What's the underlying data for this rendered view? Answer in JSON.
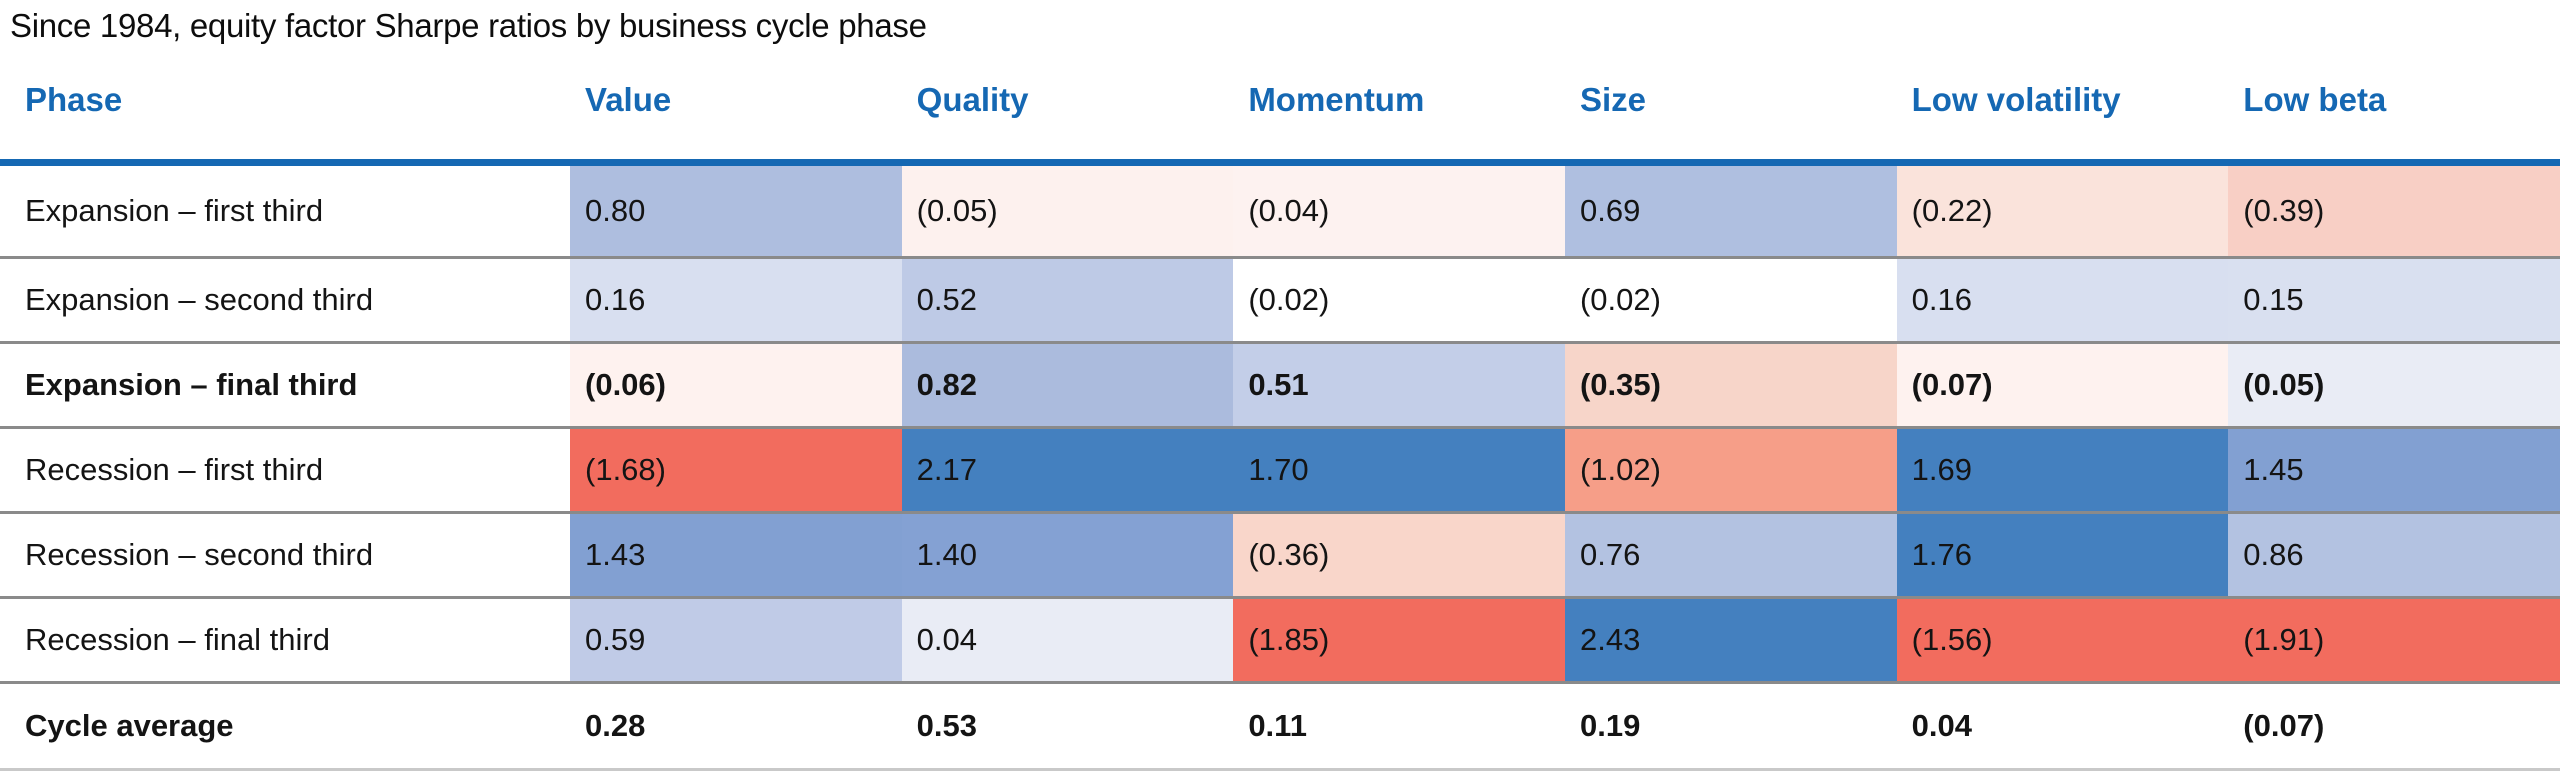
{
  "title": "Since 1984, equity factor Sharpe ratios by business cycle phase",
  "colors": {
    "accent": "#1568B3",
    "row_divider": "#8A8A8A",
    "bottom_border": "#C9C9C9",
    "text": "#141414",
    "strong_blue": "#4480BF",
    "strong_red": "#F26C5E"
  },
  "table": {
    "columns": [
      {
        "key": "phase",
        "label": "Phase"
      },
      {
        "key": "value",
        "label": "Value"
      },
      {
        "key": "quality",
        "label": "Quality"
      },
      {
        "key": "momentum",
        "label": "Momentum"
      },
      {
        "key": "size",
        "label": "Size"
      },
      {
        "key": "low-volatility",
        "label": "Low volatility"
      },
      {
        "key": "low-beta",
        "label": "Low beta"
      }
    ],
    "rows": [
      {
        "phase": "Expansion – first third",
        "bold": false,
        "cls": "row-first",
        "cells": [
          {
            "text": "0.80",
            "bg": "#AEBEDF"
          },
          {
            "text": "(0.05)",
            "bg": "#FDF1EE"
          },
          {
            "text": "(0.04)",
            "bg": "#FDF2F0"
          },
          {
            "text": "0.69",
            "bg": "#AFBFE0"
          },
          {
            "text": "(0.22)",
            "bg": "#FAE3DB"
          },
          {
            "text": "(0.39)",
            "bg": "#F8CFC5"
          }
        ]
      },
      {
        "phase": "Expansion – second third",
        "bold": false,
        "cls": "",
        "cells": [
          {
            "text": "0.16",
            "bg": "#D8DFF0"
          },
          {
            "text": "0.52",
            "bg": "#BECAE6"
          },
          {
            "text": "(0.02)",
            "bg": "#FFFFFF"
          },
          {
            "text": "(0.02)",
            "bg": "#FFFFFF"
          },
          {
            "text": "0.16",
            "bg": "#D8DFF0"
          },
          {
            "text": "0.15",
            "bg": "#D9E0F0"
          }
        ]
      },
      {
        "phase": "Expansion – final third",
        "bold": true,
        "cls": "",
        "cells": [
          {
            "text": "(0.06)",
            "bg": "#FEF2EF"
          },
          {
            "text": "0.82",
            "bg": "#ABBBDD"
          },
          {
            "text": "0.51",
            "bg": "#C3CEE8"
          },
          {
            "text": "(0.35)",
            "bg": "#F7D5C9"
          },
          {
            "text": "(0.07)",
            "bg": "#FEF2EF"
          },
          {
            "text": "(0.05)",
            "bg": "#E9ECF5"
          }
        ]
      },
      {
        "phase": "Recession – first third",
        "bold": false,
        "cls": "",
        "cells": [
          {
            "text": "(1.68)",
            "bg": "#F26C5E"
          },
          {
            "text": "2.17",
            "bg": "#4480BF"
          },
          {
            "text": "1.70",
            "bg": "#4480BF"
          },
          {
            "text": "(1.02)",
            "bg": "#F69E88"
          },
          {
            "text": "1.69",
            "bg": "#4480BF"
          },
          {
            "text": "1.45",
            "bg": "#82A0D2"
          }
        ]
      },
      {
        "phase": "Recession – second third",
        "bold": false,
        "cls": "",
        "cells": [
          {
            "text": "1.43",
            "bg": "#82A0D2"
          },
          {
            "text": "1.40",
            "bg": "#84A1D3"
          },
          {
            "text": "(0.36)",
            "bg": "#F9D6CA"
          },
          {
            "text": "0.76",
            "bg": "#B3C2E1"
          },
          {
            "text": "1.76",
            "bg": "#4480BF"
          },
          {
            "text": "0.86",
            "bg": "#B3C2E1"
          }
        ]
      },
      {
        "phase": "Recession – final third",
        "bold": false,
        "cls": "",
        "cells": [
          {
            "text": "0.59",
            "bg": "#C0CBE7"
          },
          {
            "text": "0.04",
            "bg": "#E9ECF5"
          },
          {
            "text": "(1.85)",
            "bg": "#F26C5E"
          },
          {
            "text": "2.43",
            "bg": "#4480BF"
          },
          {
            "text": "(1.56)",
            "bg": "#F26C5E"
          },
          {
            "text": "(1.91)",
            "bg": "#F26C5E"
          }
        ]
      },
      {
        "phase": "Cycle average",
        "bold": true,
        "cls": "cycle-avg",
        "cells": [
          {
            "text": "0.28",
            "bg": ""
          },
          {
            "text": "0.53",
            "bg": ""
          },
          {
            "text": "0.11",
            "bg": ""
          },
          {
            "text": "0.19",
            "bg": ""
          },
          {
            "text": "0.04",
            "bg": ""
          },
          {
            "text": "(0.07)",
            "bg": ""
          }
        ]
      }
    ]
  },
  "chart_data": {
    "type": "heatmap",
    "title": "Since 1984, equity factor Sharpe ratios by business cycle phase",
    "columns": [
      "Value",
      "Quality",
      "Momentum",
      "Size",
      "Low volatility",
      "Low beta"
    ],
    "rows": [
      "Expansion – first third",
      "Expansion – second third",
      "Expansion – final third",
      "Recession – first third",
      "Recession – second third",
      "Recession – final third",
      "Cycle average"
    ],
    "values": [
      [
        0.8,
        -0.05,
        -0.04,
        0.69,
        -0.22,
        -0.39
      ],
      [
        0.16,
        0.52,
        -0.02,
        -0.02,
        0.16,
        0.15
      ],
      [
        -0.06,
        0.82,
        0.51,
        -0.35,
        -0.07,
        -0.05
      ],
      [
        -1.68,
        2.17,
        1.7,
        -1.02,
        1.69,
        1.45
      ],
      [
        1.43,
        1.4,
        -0.36,
        0.76,
        1.76,
        0.86
      ],
      [
        0.59,
        0.04,
        -1.85,
        2.43,
        -1.56,
        -1.91
      ],
      [
        0.28,
        0.53,
        0.11,
        0.19,
        0.04,
        -0.07
      ]
    ],
    "notes": "Negative values displayed in parentheses; cell color scale: blue = positive/high, red = negative/low; Cycle average row uncolored",
    "legend_position": "none",
    "grid": "horizontal gray dividers between rows"
  }
}
